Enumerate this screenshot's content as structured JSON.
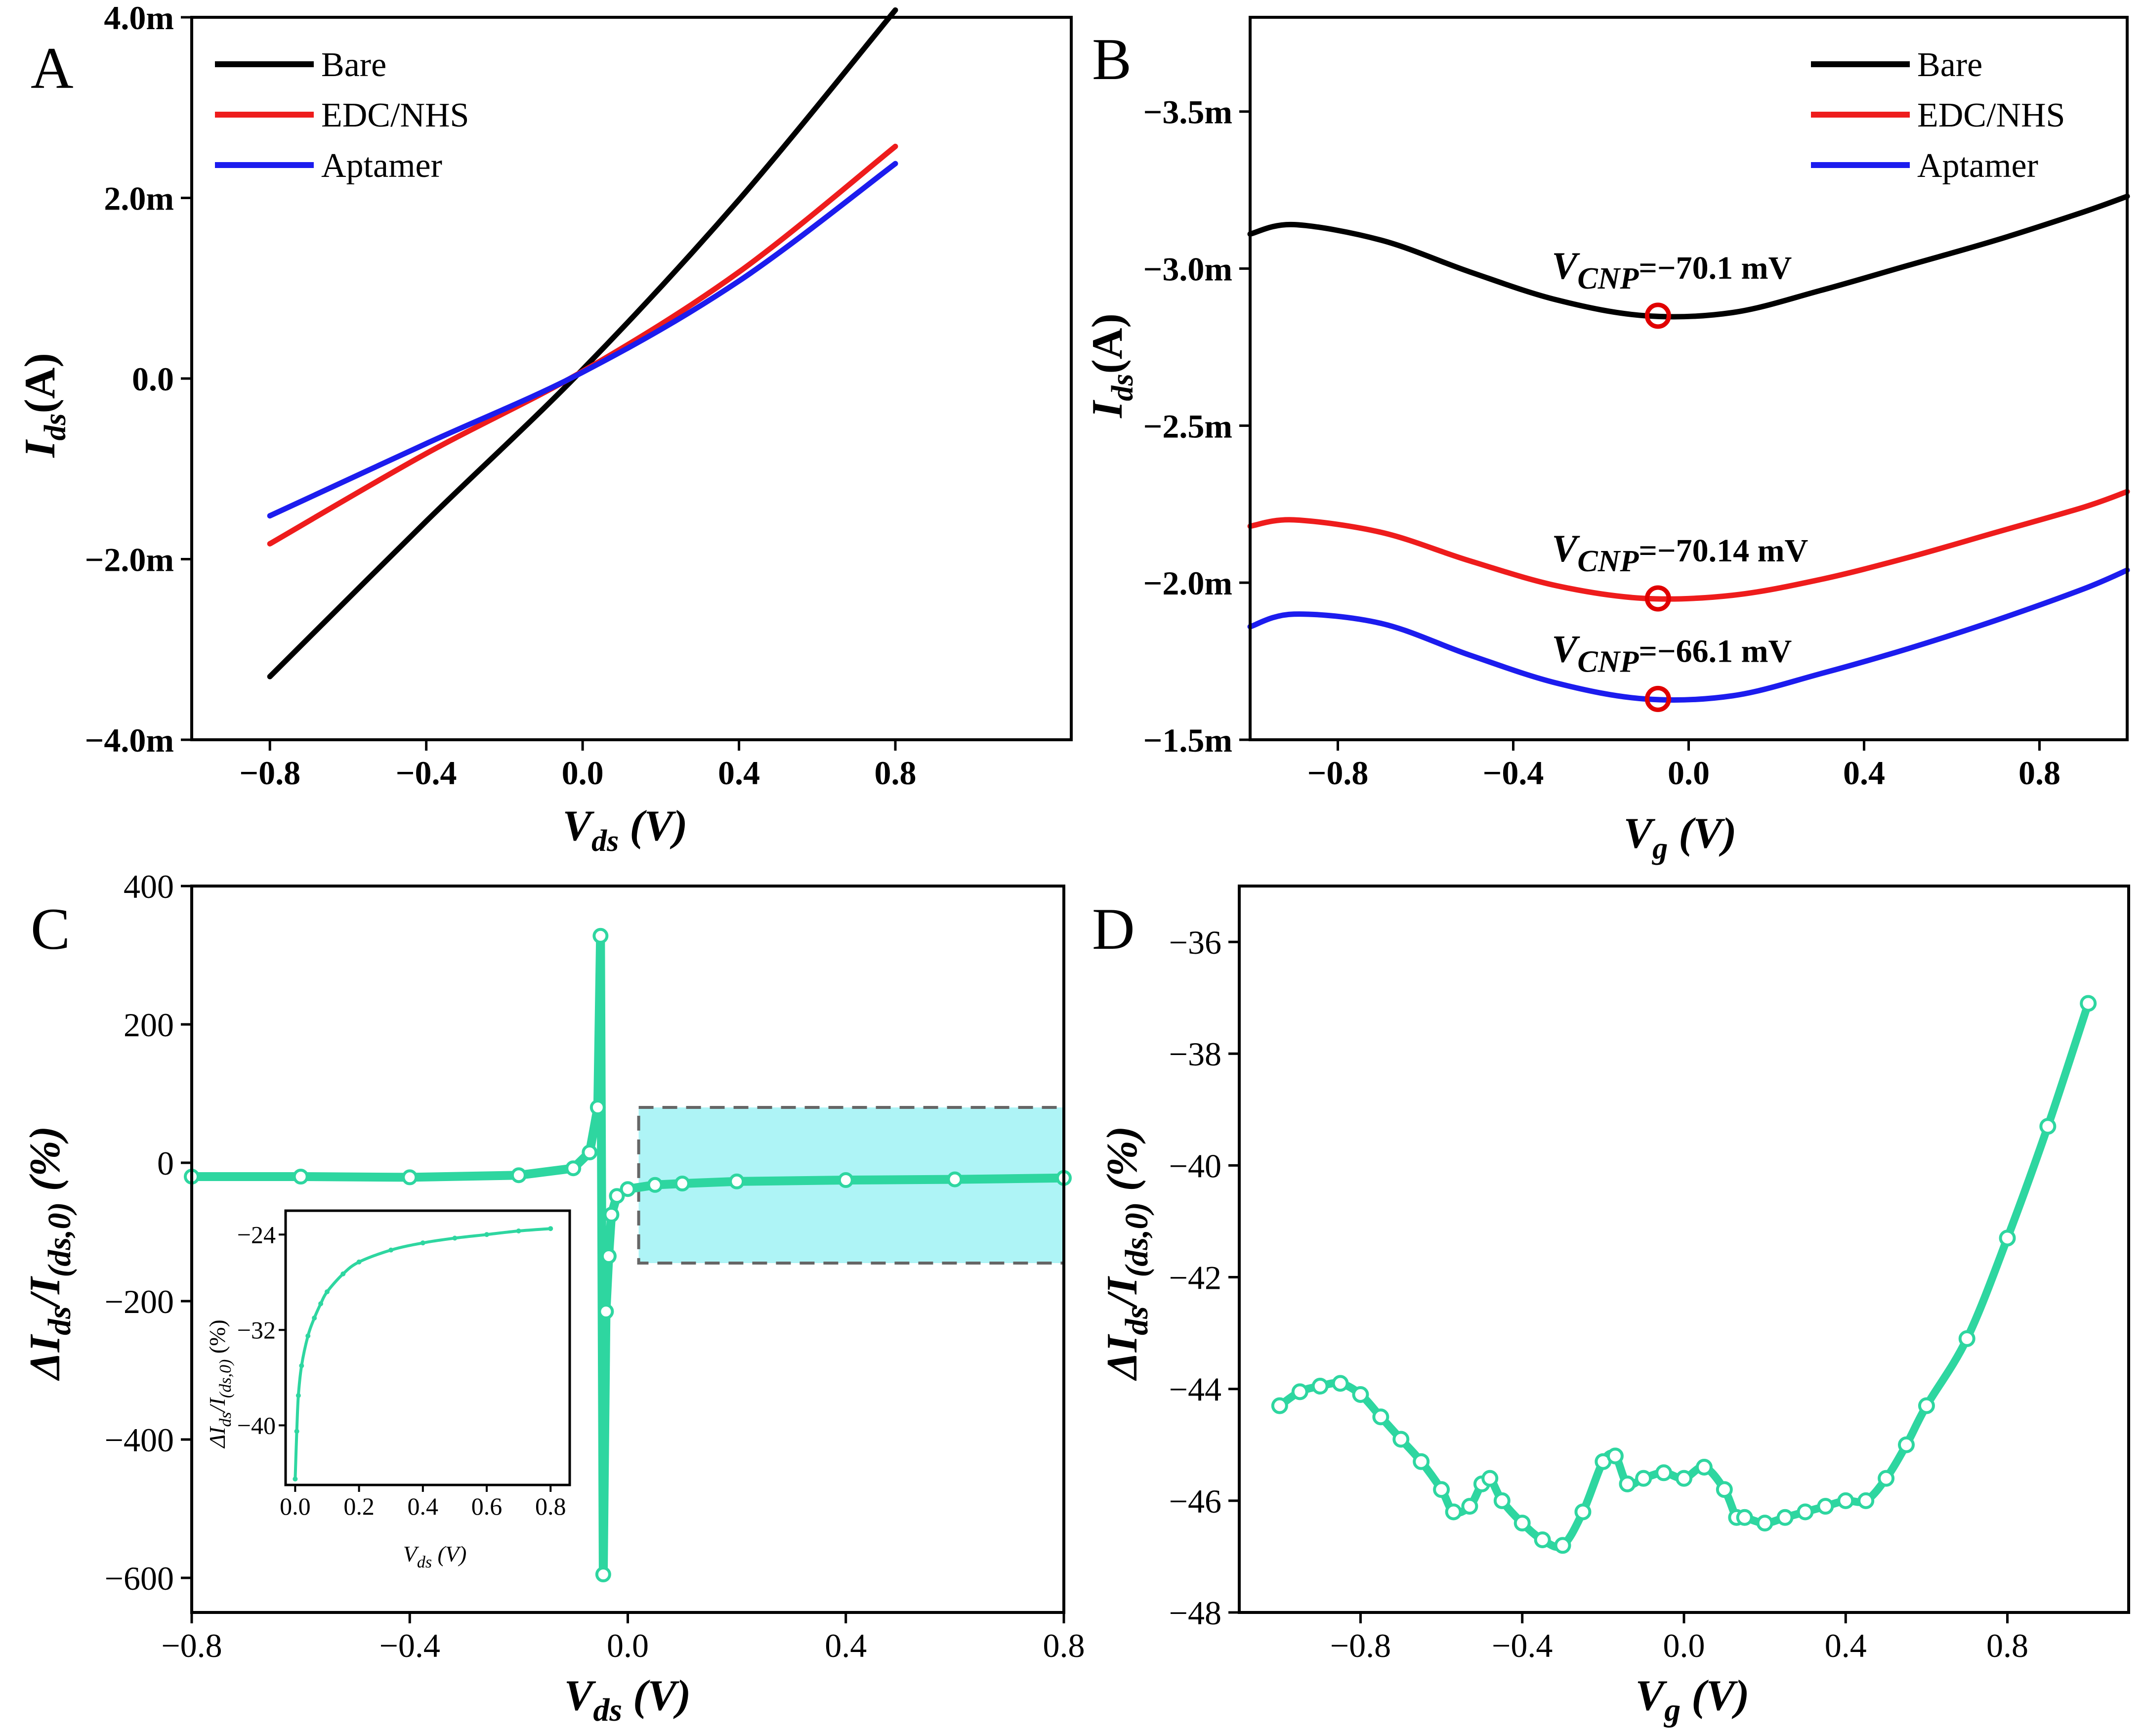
{
  "colors": {
    "bare": "#000000",
    "edc_nhs": "#ee1c1c",
    "aptamer": "#1c1cee",
    "response": "#2ed6a0",
    "highlight": "#aef4f6",
    "cnp_marker": "#e00000"
  },
  "chart_data": [
    {
      "panel": "A",
      "type": "line",
      "xlabel": "Vds (V)",
      "ylabel": "Ids(A)",
      "xlim": [
        -1.0,
        1.25
      ],
      "ylim": [
        -4.0,
        4.0
      ],
      "x_ticks": [
        -0.8,
        -0.4,
        0.0,
        0.4,
        0.8
      ],
      "x_tick_labels": [
        "−0.8",
        "−0.4",
        "0.0",
        "0.4",
        "0.8"
      ],
      "y_ticks": [
        -4,
        -2,
        0,
        2,
        4
      ],
      "y_tick_labels": [
        "−4.0m",
        "−2.0m",
        "0.0",
        "2.0m",
        "4.0m"
      ],
      "legend_position": "top-left",
      "series": [
        {
          "name": "Bare",
          "x": [
            -0.8,
            -0.4,
            0.0,
            0.4,
            0.8
          ],
          "y": [
            -3.3,
            -1.58,
            0.1,
            1.98,
            4.08
          ]
        },
        {
          "name": "EDC/NHS",
          "x": [
            -0.8,
            -0.4,
            0.0,
            0.4,
            0.8
          ],
          "y": [
            -1.83,
            -0.83,
            0.08,
            1.18,
            2.57
          ]
        },
        {
          "name": "Aptamer",
          "x": [
            -0.8,
            -0.4,
            0.0,
            0.4,
            0.8
          ],
          "y": [
            -1.52,
            -0.72,
            0.07,
            1.08,
            2.38
          ]
        }
      ]
    },
    {
      "panel": "B",
      "type": "line",
      "xlabel": "Vg (V)",
      "ylabel": "Ids(A)",
      "xlim": [
        -1.0,
        1.0
      ],
      "ylim": [
        -3.8,
        -1.5
      ],
      "y_reversed": true,
      "x_ticks": [
        -0.8,
        -0.4,
        0.0,
        0.4,
        0.8
      ],
      "x_tick_labels": [
        "−0.8",
        "−0.4",
        "0.0",
        "0.4",
        "0.8"
      ],
      "y_ticks": [
        -3.5,
        -3.0,
        -2.5,
        -2.0,
        -1.5
      ],
      "y_tick_labels": [
        "−3.5m",
        "−3.0m",
        "−2.5m",
        "−2.0m",
        "−1.5m"
      ],
      "legend_position": "top-right",
      "series": [
        {
          "name": "Bare",
          "x": [
            -1.0,
            -0.9,
            -0.7,
            -0.5,
            -0.3,
            -0.1,
            0.1,
            0.3,
            0.5,
            0.7,
            0.9,
            1.0
          ],
          "y": [
            -3.11,
            -3.14,
            -3.09,
            -2.99,
            -2.9,
            -2.85,
            -2.86,
            -2.93,
            -3.01,
            -3.09,
            -3.18,
            -3.23
          ]
        },
        {
          "name": "EDC/NHS",
          "x": [
            -1.0,
            -0.9,
            -0.7,
            -0.5,
            -0.3,
            -0.1,
            0.1,
            0.3,
            0.5,
            0.7,
            0.9,
            1.0
          ],
          "y": [
            -2.18,
            -2.2,
            -2.16,
            -2.07,
            -1.99,
            -1.95,
            -1.96,
            -2.01,
            -2.08,
            -2.16,
            -2.24,
            -2.29
          ]
        },
        {
          "name": "Aptamer",
          "x": [
            -1.0,
            -0.9,
            -0.7,
            -0.5,
            -0.3,
            -0.1,
            0.1,
            0.3,
            0.5,
            0.7,
            0.9,
            1.0
          ],
          "y": [
            -1.86,
            -1.9,
            -1.87,
            -1.77,
            -1.68,
            -1.63,
            -1.64,
            -1.71,
            -1.79,
            -1.88,
            -1.98,
            -2.04
          ]
        }
      ],
      "annotations": [
        {
          "series": "Bare",
          "x": -0.07,
          "y": -2.85,
          "text_prefix": "V",
          "text_sub": "CNP",
          "text_value": "=−70.1 mV"
        },
        {
          "series": "EDC/NHS",
          "x": -0.07,
          "y": -1.95,
          "text_prefix": "V",
          "text_sub": "CNP",
          "text_value": "=−70.14 mV"
        },
        {
          "series": "Aptamer",
          "x": -0.07,
          "y": -1.63,
          "text_prefix": "V",
          "text_sub": "CNP",
          "text_value": "=−66.1 mV"
        }
      ]
    },
    {
      "panel": "C",
      "type": "scatter",
      "xlabel": "Vds (V)",
      "ylabel": "ΔIds/I(ds,0) (%)",
      "xlim": [
        -0.8,
        0.8
      ],
      "ylim": [
        -650,
        400
      ],
      "x_ticks": [
        -0.8,
        -0.4,
        0.0,
        0.4,
        0.8
      ],
      "x_tick_labels": [
        "−0.8",
        "−0.4",
        "0.0",
        "0.4",
        "0.8"
      ],
      "y_ticks": [
        -600,
        -400,
        -200,
        0,
        200,
        400
      ],
      "y_tick_labels": [
        "−600",
        "−400",
        "−200",
        "0",
        "200",
        "400"
      ],
      "x": [
        -0.8,
        -0.6,
        -0.4,
        -0.2,
        -0.1,
        -0.07,
        -0.055,
        -0.05,
        -0.045,
        -0.04,
        -0.035,
        -0.03,
        -0.02,
        0.0,
        0.05,
        0.1,
        0.2,
        0.4,
        0.6,
        0.8
      ],
      "y": [
        -20,
        -20,
        -21,
        -18,
        -8,
        15,
        80,
        328,
        -595,
        -215,
        -135,
        -75,
        -48,
        -38,
        -32,
        -30,
        -27,
        -25,
        -24,
        -22
      ],
      "highlight_box": {
        "x_range": [
          0.02,
          0.8
        ],
        "y_range": [
          -145,
          80
        ]
      },
      "inset": {
        "xlabel": "Vds (V)",
        "ylabel": "ΔIds/I(ds,0) (%)",
        "xlim": [
          -0.03,
          0.86
        ],
        "ylim": [
          -45,
          -22
        ],
        "x_ticks": [
          0.0,
          0.2,
          0.4,
          0.6,
          0.8
        ],
        "x_tick_labels": [
          "0.0",
          "0.2",
          "0.4",
          "0.6",
          "0.8"
        ],
        "y_ticks": [
          -24,
          -32,
          -40
        ],
        "y_tick_labels": [
          "−24",
          "−32",
          "−40"
        ],
        "x": [
          0.0,
          0.005,
          0.01,
          0.02,
          0.04,
          0.06,
          0.08,
          0.1,
          0.15,
          0.2,
          0.3,
          0.4,
          0.5,
          0.6,
          0.7,
          0.8
        ],
        "y": [
          -44.5,
          -40.5,
          -37.5,
          -35,
          -32.5,
          -31,
          -29.8,
          -28.8,
          -27.3,
          -26.3,
          -25.3,
          -24.7,
          -24.3,
          -24,
          -23.7,
          -23.5
        ]
      }
    },
    {
      "panel": "D",
      "type": "scatter",
      "xlabel": "Vg (V)",
      "ylabel": "ΔIds/I(ds,0) (%)",
      "xlim": [
        -1.1,
        1.1
      ],
      "ylim": [
        -48,
        -35
      ],
      "x_ticks": [
        -0.8,
        -0.4,
        0.0,
        0.4,
        0.8
      ],
      "x_tick_labels": [
        "−0.8",
        "−0.4",
        "0.0",
        "0.4",
        "0.8"
      ],
      "y_ticks": [
        -48,
        -46,
        -44,
        -42,
        -40,
        -38,
        -36
      ],
      "y_tick_labels": [
        "−48",
        "−46",
        "−44",
        "−42",
        "−40",
        "−38",
        "−36"
      ],
      "x": [
        -1.0,
        -0.95,
        -0.9,
        -0.85,
        -0.8,
        -0.75,
        -0.7,
        -0.65,
        -0.6,
        -0.57,
        -0.53,
        -0.5,
        -0.48,
        -0.45,
        -0.4,
        -0.35,
        -0.3,
        -0.25,
        -0.2,
        -0.17,
        -0.14,
        -0.1,
        -0.05,
        0.0,
        0.05,
        0.1,
        0.13,
        0.15,
        0.2,
        0.25,
        0.3,
        0.35,
        0.4,
        0.45,
        0.5,
        0.55,
        0.6,
        0.7,
        0.8,
        0.9,
        1.0
      ],
      "y": [
        -44.3,
        -44.05,
        -43.95,
        -43.9,
        -44.1,
        -44.5,
        -44.9,
        -45.3,
        -45.8,
        -46.2,
        -46.1,
        -45.7,
        -45.6,
        -46.0,
        -46.4,
        -46.7,
        -46.8,
        -46.2,
        -45.3,
        -45.2,
        -45.7,
        -45.6,
        -45.5,
        -45.6,
        -45.4,
        -45.8,
        -46.3,
        -46.3,
        -46.4,
        -46.3,
        -46.2,
        -46.1,
        -46.0,
        -46.0,
        -45.6,
        -45.0,
        -44.3,
        -43.1,
        -41.3,
        -39.3,
        -37.1
      ]
    }
  ],
  "panels": {
    "A": {
      "letter": "A",
      "legend": [
        "Bare",
        "EDC/NHS",
        "Aptamer"
      ]
    },
    "B": {
      "letter": "B",
      "legend": [
        "Bare",
        "EDC/NHS",
        "Aptamer"
      ]
    },
    "C": {
      "letter": "C"
    },
    "D": {
      "letter": "D"
    }
  },
  "axis_titles": {
    "A_y_main": "I",
    "A_y_sub": "ds",
    "A_y_rest": "(A)",
    "A_x_main": "V",
    "A_x_sub": "ds",
    "A_x_rest": " (V)",
    "B_y_main": "I",
    "B_y_sub": "ds",
    "B_y_rest": "(A)",
    "B_x_main": "V",
    "B_x_sub": "g",
    "B_x_rest": " (V)",
    "C_y_main": "ΔI",
    "C_y_sub": "ds",
    "C_y_mid": "/I",
    "C_y_sub2": "(ds,0)",
    "C_y_rest": " (%)",
    "C_x_main": "V",
    "C_x_sub": "ds",
    "C_x_rest": " (V)",
    "C_inset_y_main": "ΔI",
    "C_inset_y_sub": "ds",
    "C_inset_y_mid": "/I",
    "C_inset_y_sub2": "(ds,0)",
    "C_inset_y_rest": " (%)",
    "C_inset_x_main": "V",
    "C_inset_x_sub": "ds",
    "C_inset_x_rest": " (V)",
    "D_y_main": "ΔI",
    "D_y_sub": "ds",
    "D_y_mid": "/I",
    "D_y_sub2": "(ds,0)",
    "D_y_rest": " (%)",
    "D_x_main": "V",
    "D_x_sub": "g",
    "D_x_rest": " (V)"
  }
}
